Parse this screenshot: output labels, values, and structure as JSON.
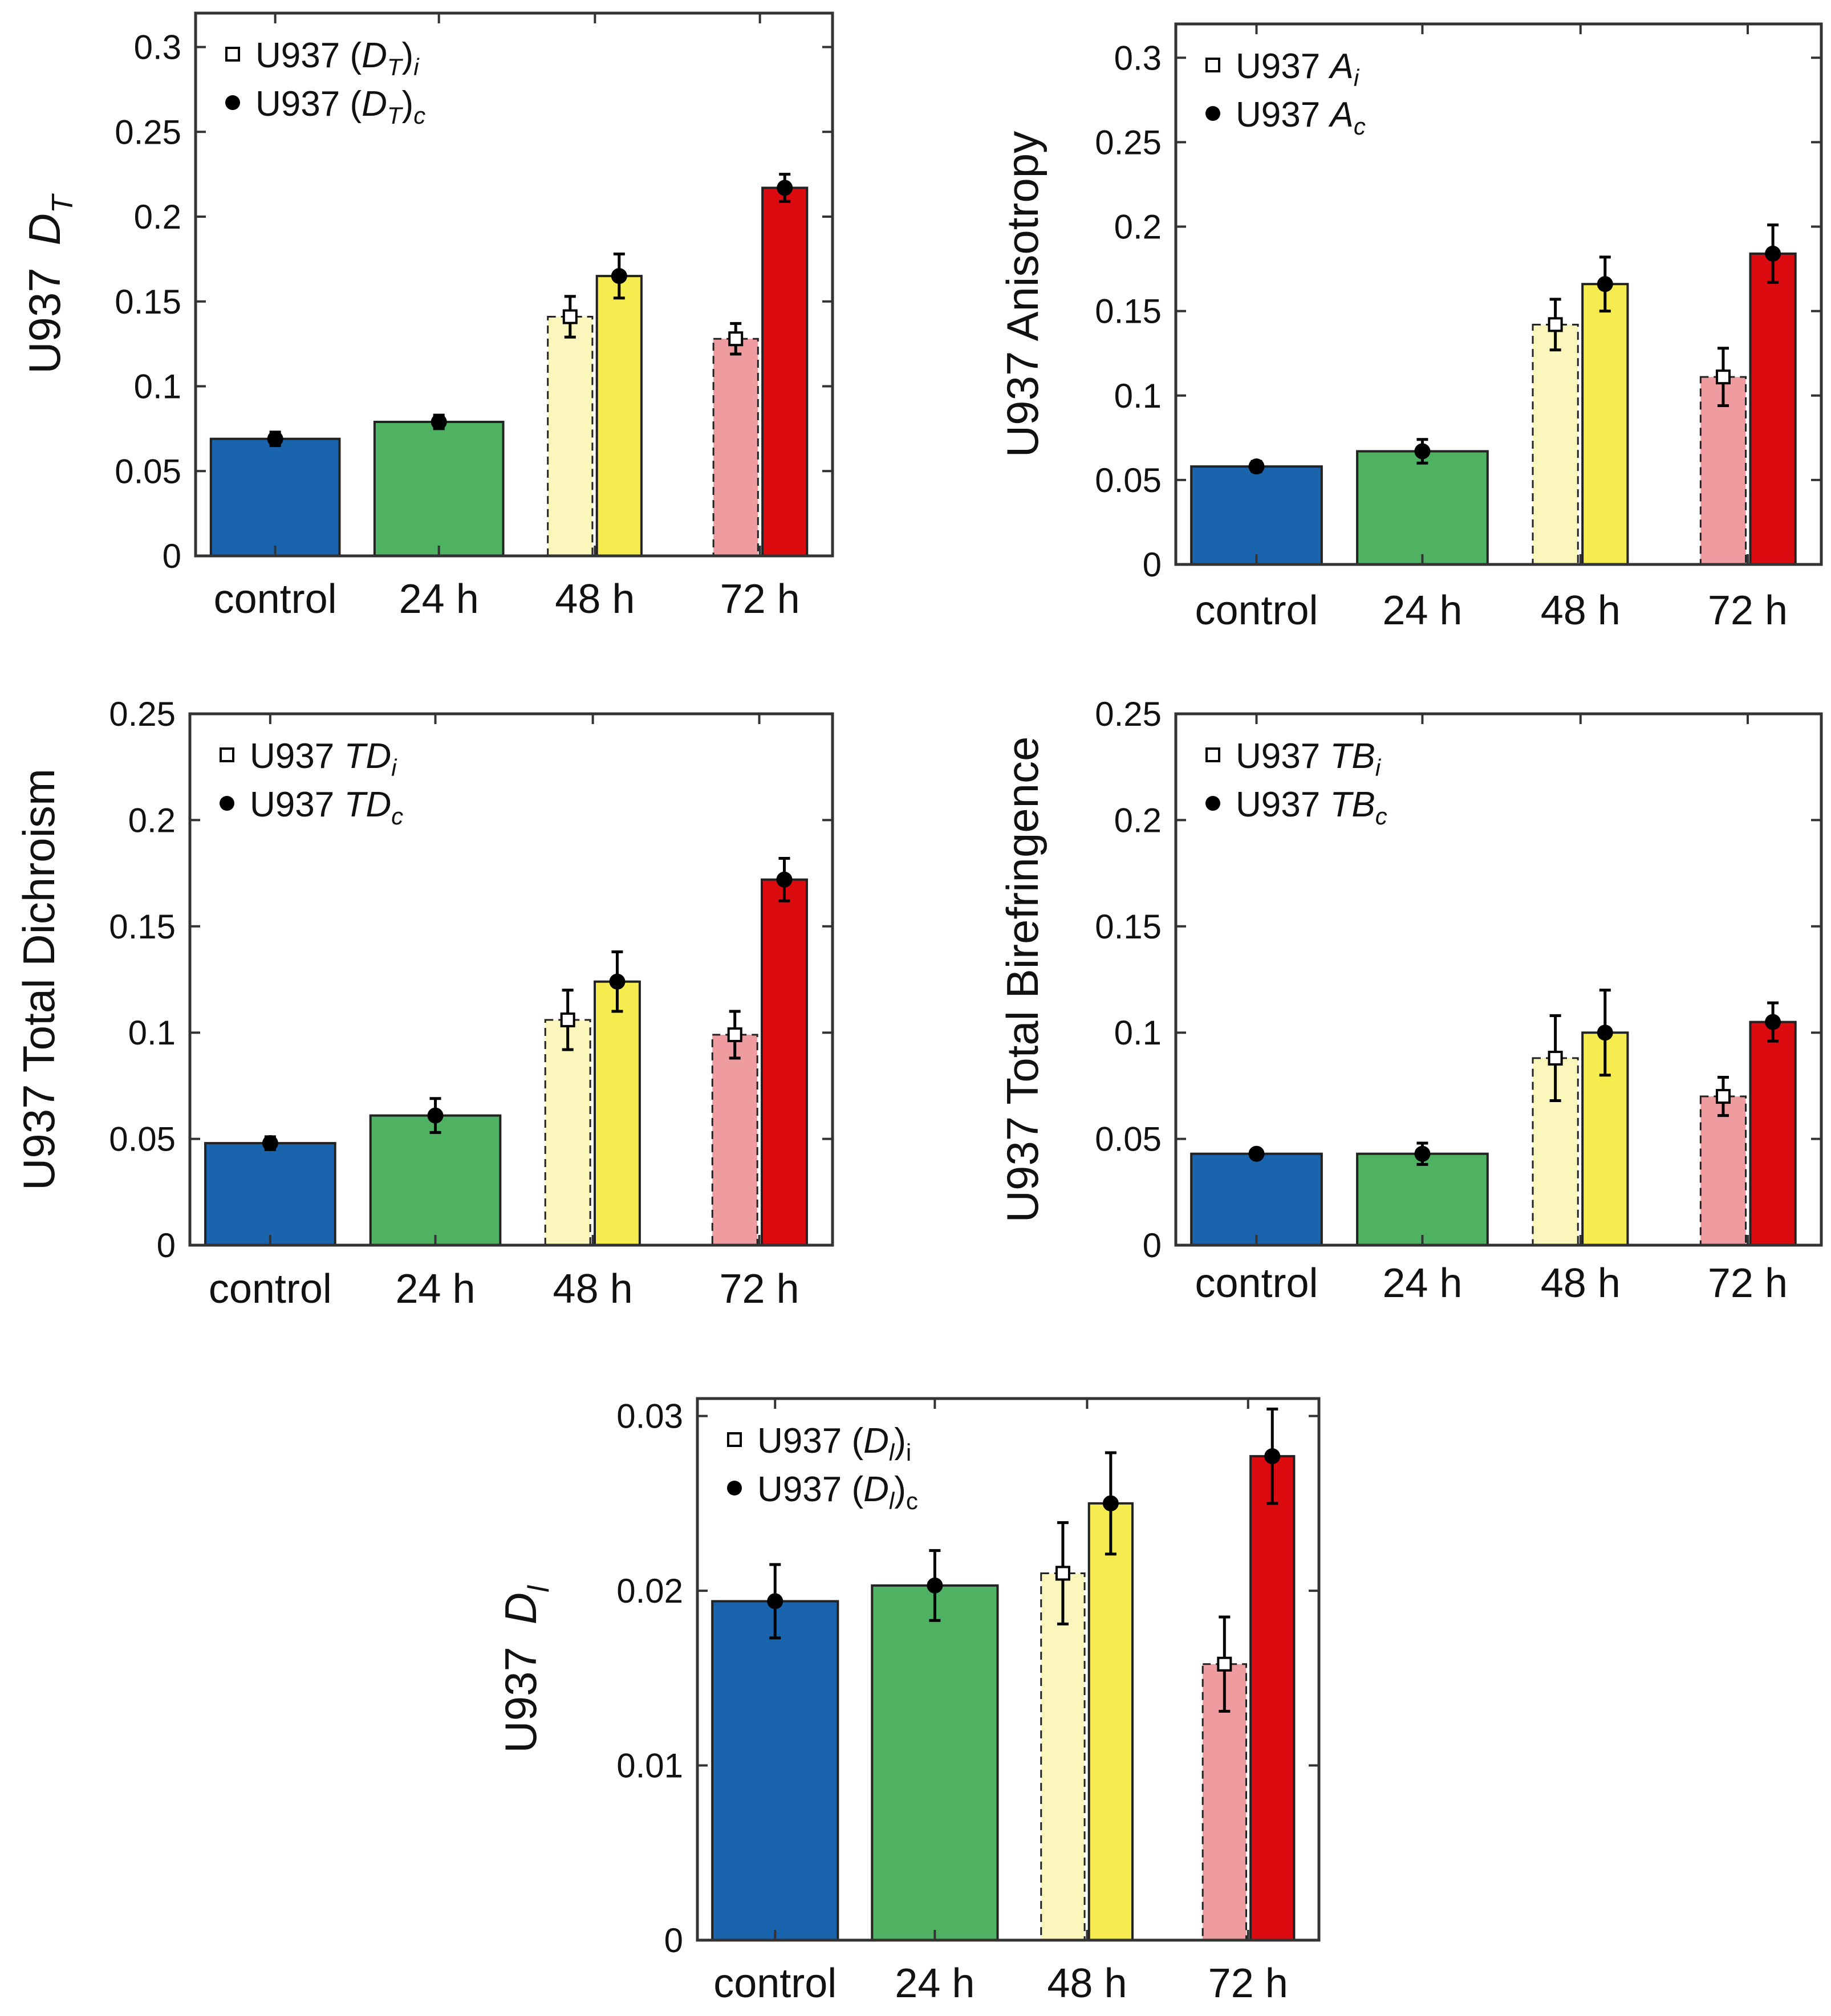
{
  "figure": {
    "description_color_bg": "#ffffff"
  },
  "colors": {
    "control": "#1a63ad",
    "h24": "#4fb263",
    "h48_i": "#fbf6bb",
    "h48_c": "#f6ec50",
    "h72_i": "#ef9ca0",
    "h72_c": "#dc0b10",
    "axis": "#333333",
    "marker": "#000000"
  },
  "chart_data": [
    {
      "id": "dt",
      "type": "bar",
      "ylabel_main": "U937",
      "ylabel_sym": "D",
      "ylabel_sub": "T",
      "ylim": [
        0,
        0.32
      ],
      "yticks": [
        0,
        0.05,
        0.1,
        0.15,
        0.2,
        0.25,
        0.3
      ],
      "ytick_labels": [
        "0",
        "0.05",
        "0.1",
        "0.15",
        "0.2",
        "0.25",
        "0.3"
      ],
      "categories": [
        "control",
        "24 h",
        "48 h",
        "72 h"
      ],
      "legend": [
        {
          "marker": "square-open",
          "prefix": "U937 (",
          "sym": "D",
          "sub": "T",
          "close": ")",
          "tail": "i"
        },
        {
          "marker": "circle-filled",
          "prefix": "U937 (",
          "sym": "D",
          "sub": "T",
          "close": ")",
          "tail": "c"
        }
      ],
      "bars": [
        {
          "category": "control",
          "series": "single",
          "value": 0.069,
          "err": 0.004,
          "marker": "circle"
        },
        {
          "category": "24 h",
          "series": "single",
          "value": 0.079,
          "err": 0.004,
          "marker": "circle"
        },
        {
          "category": "48 h",
          "series": "i",
          "value": 0.141,
          "err": 0.012,
          "marker": "square"
        },
        {
          "category": "48 h",
          "series": "c",
          "value": 0.165,
          "err": 0.013,
          "marker": "circle"
        },
        {
          "category": "72 h",
          "series": "i",
          "value": 0.128,
          "err": 0.009,
          "marker": "square"
        },
        {
          "category": "72 h",
          "series": "c",
          "value": 0.217,
          "err": 0.008,
          "marker": "circle"
        }
      ]
    },
    {
      "id": "aniso",
      "type": "bar",
      "ylabel_main": "U937 Anisotropy",
      "ylim": [
        0,
        0.32
      ],
      "yticks": [
        0,
        0.05,
        0.1,
        0.15,
        0.2,
        0.25,
        0.3
      ],
      "ytick_labels": [
        "0",
        "0.05",
        "0.1",
        "0.15",
        "0.2",
        "0.25",
        "0.3"
      ],
      "categories": [
        "control",
        "24 h",
        "48 h",
        "72 h"
      ],
      "legend": [
        {
          "marker": "square-open",
          "prefix": "U937 ",
          "sym": "A",
          "sub": "i"
        },
        {
          "marker": "circle-filled",
          "prefix": "U937 ",
          "sym": "A",
          "sub": "c"
        }
      ],
      "bars": [
        {
          "category": "control",
          "series": "single",
          "value": 0.058,
          "err": 0.003,
          "marker": "circle"
        },
        {
          "category": "24 h",
          "series": "single",
          "value": 0.067,
          "err": 0.007,
          "marker": "circle"
        },
        {
          "category": "48 h",
          "series": "i",
          "value": 0.142,
          "err": 0.015,
          "marker": "square"
        },
        {
          "category": "48 h",
          "series": "c",
          "value": 0.166,
          "err": 0.016,
          "marker": "circle"
        },
        {
          "category": "72 h",
          "series": "i",
          "value": 0.111,
          "err": 0.017,
          "marker": "square"
        },
        {
          "category": "72 h",
          "series": "c",
          "value": 0.184,
          "err": 0.017,
          "marker": "circle"
        }
      ]
    },
    {
      "id": "tdich",
      "type": "bar",
      "ylabel_main": "U937 Total Dichroism",
      "ylim": [
        0,
        0.25
      ],
      "yticks": [
        0,
        0.05,
        0.1,
        0.15,
        0.2,
        0.25
      ],
      "ytick_labels": [
        "0",
        "0.05",
        "0.1",
        "0.15",
        "0.2",
        "0.25"
      ],
      "categories": [
        "control",
        "24 h",
        "48 h",
        "72 h"
      ],
      "legend": [
        {
          "marker": "square-open",
          "prefix": "U937 ",
          "sym": "TD",
          "sub": "i"
        },
        {
          "marker": "circle-filled",
          "prefix": "U937 ",
          "sym": "TD",
          "sub": "c"
        }
      ],
      "bars": [
        {
          "category": "control",
          "series": "single",
          "value": 0.048,
          "err": 0.003,
          "marker": "circle"
        },
        {
          "category": "24 h",
          "series": "single",
          "value": 0.061,
          "err": 0.008,
          "marker": "circle"
        },
        {
          "category": "48 h",
          "series": "i",
          "value": 0.106,
          "err": 0.014,
          "marker": "square"
        },
        {
          "category": "48 h",
          "series": "c",
          "value": 0.124,
          "err": 0.014,
          "marker": "circle"
        },
        {
          "category": "72 h",
          "series": "i",
          "value": 0.099,
          "err": 0.011,
          "marker": "square"
        },
        {
          "category": "72 h",
          "series": "c",
          "value": 0.172,
          "err": 0.01,
          "marker": "circle"
        }
      ]
    },
    {
      "id": "tbire",
      "type": "bar",
      "ylabel_main": "U937 Total Birefringence",
      "ylim": [
        0,
        0.25
      ],
      "yticks": [
        0,
        0.05,
        0.1,
        0.15,
        0.2,
        0.25
      ],
      "ytick_labels": [
        "0",
        "0.05",
        "0.1",
        "0.15",
        "0.2",
        "0.25"
      ],
      "categories": [
        "control",
        "24 h",
        "48 h",
        "72 h"
      ],
      "legend": [
        {
          "marker": "square-open",
          "prefix": "U937 ",
          "sym": "TB",
          "sub": "i"
        },
        {
          "marker": "circle-filled",
          "prefix": "U937 ",
          "sym": "TB",
          "sub": "c"
        }
      ],
      "bars": [
        {
          "category": "control",
          "series": "single",
          "value": 0.043,
          "err": 0.002,
          "marker": "circle"
        },
        {
          "category": "24 h",
          "series": "single",
          "value": 0.043,
          "err": 0.005,
          "marker": "circle"
        },
        {
          "category": "48 h",
          "series": "i",
          "value": 0.088,
          "err": 0.02,
          "marker": "square"
        },
        {
          "category": "48 h",
          "series": "c",
          "value": 0.1,
          "err": 0.02,
          "marker": "circle"
        },
        {
          "category": "72 h",
          "series": "i",
          "value": 0.07,
          "err": 0.009,
          "marker": "square"
        },
        {
          "category": "72 h",
          "series": "c",
          "value": 0.105,
          "err": 0.009,
          "marker": "circle"
        }
      ]
    },
    {
      "id": "dl",
      "type": "bar",
      "ylabel_main": "U937",
      "ylabel_sym": "D",
      "ylabel_sub": "l",
      "ylim": [
        0,
        0.031
      ],
      "yticks": [
        0,
        0.01,
        0.02,
        0.03
      ],
      "ytick_labels": [
        "0",
        "0.01",
        "0.02",
        "0.03"
      ],
      "categories": [
        "control",
        "24 h",
        "48 h",
        "72 h"
      ],
      "legend": [
        {
          "marker": "square-open",
          "prefix": "U937 (",
          "sym": "D",
          "sub": "l",
          "close": ")",
          "tail": "i"
        },
        {
          "marker": "circle-filled",
          "prefix": "U937 (",
          "sym": "D",
          "sub": "l",
          "close": ")",
          "tail": "c"
        }
      ],
      "bars": [
        {
          "category": "control",
          "series": "single",
          "value": 0.0194,
          "err": 0.0021,
          "marker": "circle"
        },
        {
          "category": "24 h",
          "series": "single",
          "value": 0.0203,
          "err": 0.002,
          "marker": "circle"
        },
        {
          "category": "48 h",
          "series": "i",
          "value": 0.021,
          "err": 0.0029,
          "marker": "square"
        },
        {
          "category": "48 h",
          "series": "c",
          "value": 0.025,
          "err": 0.0029,
          "marker": "circle"
        },
        {
          "category": "72 h",
          "series": "i",
          "value": 0.0158,
          "err": 0.0027,
          "marker": "square"
        },
        {
          "category": "72 h",
          "series": "c",
          "value": 0.0277,
          "err": 0.0027,
          "marker": "circle"
        }
      ]
    }
  ]
}
